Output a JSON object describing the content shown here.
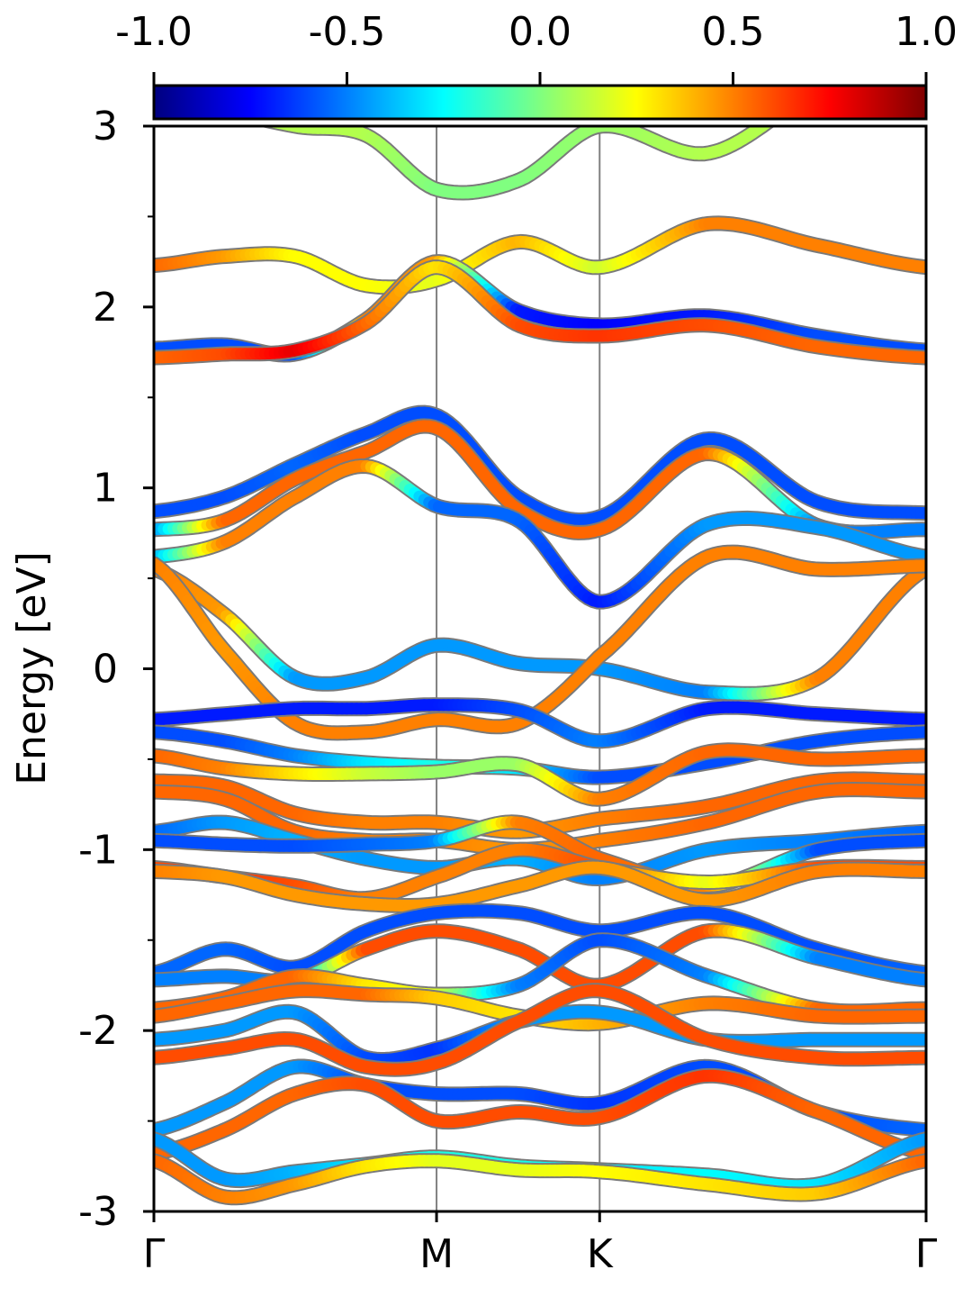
{
  "chart_data": {
    "type": "line",
    "title": "",
    "xlabel": "",
    "ylabel": "Energy [eV]",
    "ylim": [
      -3,
      3
    ],
    "yticks": [
      -3,
      -2,
      -1,
      0,
      1,
      2,
      3
    ],
    "ytick_labels": [
      "-3",
      "-2",
      "-1",
      "0",
      "1",
      "2",
      "3"
    ],
    "k_points": [
      {
        "label": "Γ",
        "position": 0.0
      },
      {
        "label": "M",
        "position": 1.0
      },
      {
        "label": "K",
        "position": 1.577
      },
      {
        "label": "Γ",
        "position": 2.732
      }
    ],
    "colorbar": {
      "colormap": "jet",
      "range": [
        -1.0,
        1.0
      ],
      "tick_labels": [
        "-1.0",
        "-0.5",
        "0.0",
        "0.5",
        "1.0"
      ],
      "tick_values": [
        -1.0,
        -0.5,
        0.0,
        0.5,
        1.0
      ]
    },
    "x_samples": [
      0.0,
      0.25,
      0.5,
      0.75,
      1.0,
      1.29,
      1.577,
      1.96,
      2.35,
      2.732
    ],
    "bands": [
      {
        "y": [
          2.23,
          2.28,
          2.28,
          2.12,
          2.15,
          2.36,
          2.22,
          2.46,
          2.34,
          2.22
        ],
        "w": [
          0.55,
          0.45,
          0.25,
          0.25,
          0.2,
          0.4,
          0.15,
          0.5,
          0.5,
          0.5
        ]
      },
      {
        "y": [
          1.77,
          1.79,
          1.74,
          1.93,
          2.25,
          1.98,
          1.9,
          1.95,
          1.84,
          1.76
        ],
        "w": [
          -0.6,
          -0.6,
          -0.6,
          0.5,
          0.45,
          -0.7,
          -0.75,
          -0.7,
          -0.6,
          -0.6
        ]
      },
      {
        "y": [
          1.72,
          1.74,
          1.76,
          1.91,
          2.22,
          1.9,
          1.84,
          1.9,
          1.78,
          1.72
        ],
        "w": [
          0.55,
          0.6,
          0.8,
          0.55,
          0.3,
          0.6,
          0.65,
          0.6,
          0.55,
          0.55
        ]
      },
      {
        "y": [
          0.87,
          0.95,
          1.13,
          1.3,
          1.4,
          0.95,
          0.84,
          1.27,
          0.92,
          0.86
        ],
        "w": [
          -0.6,
          -0.6,
          -0.55,
          -0.6,
          -0.6,
          -0.6,
          -0.6,
          -0.6,
          -0.6,
          -0.6
        ]
      },
      {
        "y": [
          0.77,
          0.82,
          1.05,
          1.2,
          1.33,
          0.88,
          0.77,
          1.19,
          0.79,
          0.77
        ],
        "w": [
          -0.5,
          0.55,
          0.55,
          0.55,
          0.55,
          0.55,
          0.55,
          0.55,
          -0.5,
          -0.5
        ]
      },
      {
        "y": [
          0.62,
          0.7,
          0.95,
          1.12,
          0.9,
          0.82,
          0.37,
          0.8,
          0.78,
          0.62
        ],
        "w": [
          -0.45,
          0.5,
          0.5,
          0.5,
          -0.55,
          -0.55,
          -0.7,
          -0.45,
          -0.45,
          -0.45
        ]
      },
      {
        "y": [
          0.55,
          0.3,
          -0.05,
          -0.05,
          0.13,
          0.03,
          0.0,
          -0.13,
          -0.05,
          0.55
        ],
        "w": [
          0.5,
          0.45,
          -0.45,
          -0.45,
          -0.45,
          -0.45,
          -0.45,
          -0.5,
          0.5,
          0.5
        ]
      },
      {
        "y": [
          0.58,
          0.1,
          -0.3,
          -0.35,
          -0.28,
          -0.3,
          0.07,
          0.62,
          0.55,
          0.57
        ],
        "w": [
          0.5,
          0.45,
          0.5,
          0.5,
          0.5,
          0.5,
          0.5,
          0.5,
          0.5,
          0.5
        ]
      },
      {
        "y": [
          -0.28,
          -0.25,
          -0.22,
          -0.22,
          -0.2,
          -0.23,
          -0.4,
          -0.22,
          -0.25,
          -0.28
        ],
        "w": [
          -0.7,
          -0.7,
          -0.7,
          -0.7,
          -0.7,
          -0.6,
          -0.5,
          -0.7,
          -0.7,
          -0.7
        ]
      },
      {
        "y": [
          -0.35,
          -0.4,
          -0.48,
          -0.52,
          -0.54,
          -0.55,
          -0.6,
          -0.52,
          -0.4,
          -0.35
        ],
        "w": [
          -0.6,
          -0.6,
          -0.5,
          -0.3,
          -0.2,
          -0.3,
          -0.6,
          -0.6,
          -0.6,
          -0.6
        ]
      },
      {
        "y": [
          -0.48,
          -0.55,
          -0.58,
          -0.58,
          -0.57,
          -0.53,
          -0.72,
          -0.46,
          -0.5,
          -0.48
        ],
        "w": [
          0.55,
          0.5,
          0.3,
          0.15,
          0.05,
          0.05,
          0.5,
          0.55,
          0.55,
          0.55
        ]
      },
      {
        "y": [
          -0.62,
          -0.65,
          -0.8,
          -0.85,
          -0.85,
          -0.9,
          -0.83,
          -0.76,
          -0.62,
          -0.62
        ],
        "w": [
          0.55,
          0.55,
          0.55,
          0.5,
          0.5,
          0.45,
          0.5,
          0.55,
          0.55,
          0.55
        ]
      },
      {
        "y": [
          -0.68,
          -0.72,
          -0.9,
          -0.95,
          -0.95,
          -1.0,
          -0.95,
          -0.85,
          -0.68,
          -0.68
        ],
        "w": [
          0.55,
          0.55,
          0.55,
          0.5,
          0.5,
          0.45,
          0.5,
          0.55,
          0.55,
          0.55
        ]
      },
      {
        "y": [
          -0.9,
          -0.85,
          -0.95,
          -1.05,
          -1.1,
          -1.05,
          -1.16,
          -1.0,
          -0.95,
          -0.9
        ],
        "w": [
          -0.55,
          -0.45,
          -0.4,
          -0.45,
          -0.45,
          -0.4,
          -0.5,
          -0.45,
          -0.5,
          -0.55
        ]
      },
      {
        "y": [
          -0.95,
          -0.97,
          -0.98,
          -0.97,
          -0.95,
          -0.85,
          -1.05,
          -1.2,
          -1.0,
          -0.95
        ],
        "w": [
          -0.6,
          -0.6,
          -0.6,
          -0.55,
          -0.5,
          0.5,
          0.55,
          0.5,
          -0.6,
          -0.6
        ]
      },
      {
        "y": [
          -1.1,
          -1.15,
          -1.2,
          -1.27,
          -1.15,
          -1.0,
          -1.1,
          -1.18,
          -1.1,
          -1.1
        ],
        "w": [
          0.6,
          0.65,
          0.6,
          0.5,
          0.5,
          0.5,
          0.6,
          0.2,
          0.6,
          0.6
        ]
      },
      {
        "y": [
          -1.12,
          -1.15,
          -1.25,
          -1.3,
          -1.3,
          -1.2,
          -1.1,
          -1.28,
          -1.12,
          -1.12
        ],
        "w": [
          0.5,
          0.45,
          0.45,
          0.45,
          0.45,
          0.45,
          0.45,
          0.45,
          0.5,
          0.5
        ]
      },
      {
        "y": [
          -1.68,
          -1.55,
          -1.65,
          -1.45,
          -1.35,
          -1.35,
          -1.45,
          -1.35,
          -1.55,
          -1.68
        ],
        "w": [
          -0.55,
          -0.55,
          -0.6,
          -0.6,
          -0.6,
          -0.6,
          -0.6,
          -0.6,
          -0.6,
          -0.55
        ]
      },
      {
        "y": [
          -1.72,
          -1.7,
          -1.72,
          -1.55,
          -1.45,
          -1.55,
          -1.75,
          -1.45,
          -1.6,
          -1.72
        ],
        "w": [
          -0.5,
          -0.5,
          -0.5,
          0.6,
          0.6,
          0.6,
          0.6,
          0.6,
          -0.5,
          -0.5
        ]
      },
      {
        "y": [
          -1.88,
          -1.82,
          -1.7,
          -1.75,
          -1.8,
          -1.75,
          -1.5,
          -1.7,
          -1.88,
          -1.88
        ],
        "w": [
          0.55,
          0.55,
          0.55,
          0.3,
          0.2,
          -0.5,
          -0.6,
          -0.5,
          0.55,
          0.55
        ]
      },
      {
        "y": [
          -1.92,
          -1.85,
          -1.78,
          -1.8,
          -1.82,
          -1.92,
          -1.96,
          -1.85,
          -1.92,
          -1.92
        ],
        "w": [
          0.55,
          0.55,
          0.55,
          0.55,
          0.35,
          0.3,
          0.4,
          0.5,
          0.55,
          0.55
        ]
      },
      {
        "y": [
          -2.05,
          -2.0,
          -1.9,
          -2.15,
          -2.1,
          -1.95,
          -1.9,
          -2.05,
          -2.05,
          -2.05
        ],
        "w": [
          -0.45,
          -0.45,
          -0.45,
          -0.6,
          -0.65,
          -0.45,
          -0.45,
          -0.45,
          -0.45,
          -0.45
        ]
      },
      {
        "y": [
          -2.15,
          -2.1,
          -2.05,
          -2.2,
          -2.18,
          -1.95,
          -1.78,
          -2.05,
          -2.15,
          -2.15
        ],
        "w": [
          0.6,
          0.6,
          0.6,
          0.6,
          0.6,
          0.6,
          0.6,
          0.6,
          0.6,
          0.6
        ]
      },
      {
        "y": [
          -2.55,
          -2.4,
          -2.2,
          -2.3,
          -2.35,
          -2.35,
          -2.4,
          -2.2,
          -2.45,
          -2.55
        ],
        "w": [
          -0.45,
          -0.45,
          -0.45,
          -0.6,
          -0.6,
          -0.6,
          -0.65,
          -0.6,
          -0.6,
          -0.55
        ]
      },
      {
        "y": [
          -2.68,
          -2.55,
          -2.35,
          -2.3,
          -2.5,
          -2.45,
          -2.48,
          -2.25,
          -2.45,
          -2.68
        ],
        "w": [
          0.55,
          0.55,
          0.55,
          0.6,
          0.6,
          0.6,
          0.6,
          0.65,
          0.55,
          0.55
        ]
      },
      {
        "y": [
          -2.6,
          -2.82,
          -2.78,
          -2.74,
          -2.7,
          -2.75,
          -2.77,
          -2.8,
          -2.85,
          -2.6
        ],
        "w": [
          -0.45,
          -0.45,
          -0.4,
          -0.3,
          -0.2,
          -0.2,
          -0.3,
          -0.25,
          -0.3,
          -0.45
        ]
      },
      {
        "y": [
          -2.72,
          -2.92,
          -2.85,
          -2.75,
          -2.72,
          -2.77,
          -2.78,
          -2.85,
          -2.9,
          -2.72
        ],
        "w": [
          0.55,
          0.5,
          0.45,
          0.3,
          0.2,
          0.2,
          0.25,
          0.3,
          0.35,
          0.55
        ]
      },
      {
        "y": [
          3.3,
          3.1,
          3.0,
          2.95,
          2.65,
          2.7,
          3.0,
          2.85,
          3.2,
          3.4
        ],
        "w": [
          0.1,
          0.1,
          0.1,
          0.1,
          0.0,
          0.0,
          0.05,
          0.1,
          0.1,
          0.1
        ]
      }
    ]
  }
}
